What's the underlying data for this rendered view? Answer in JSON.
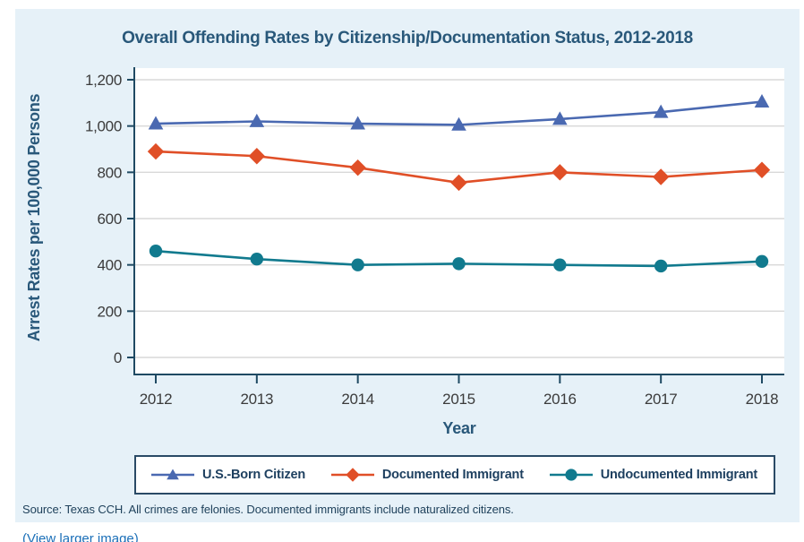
{
  "chart": {
    "title": "Overall Offending Rates by Citizenship/Documentation Status, 2012-2018",
    "source_note": "Source: Texas CCH. All crimes are felonies. Documented immigrants include naturalized citizens.",
    "colors": {
      "panel_bg": "#E6F1F8",
      "title_text": "#29587A",
      "axis_line": "#1F4A63",
      "tick_text": "#3B3B3B",
      "gridline": "#D8D8D8",
      "legend_border": "#2A4A66",
      "link": "#1B6FB8"
    }
  },
  "page": {
    "view_larger_link": "(View larger image)"
  },
  "chart_data": {
    "type": "line",
    "title": "Overall Offending Rates by Citizenship/Documentation Status, 2012-2018",
    "xlabel": "Year",
    "ylabel": "Arrest Rates per 100,000 Persons",
    "x": [
      "2012",
      "2013",
      "2014",
      "2015",
      "2016",
      "2017",
      "2018"
    ],
    "ylim": [
      0,
      1200
    ],
    "yticks": [
      0,
      200,
      400,
      600,
      800,
      1000,
      1200
    ],
    "ytick_labels": [
      "0",
      "200",
      "400",
      "600",
      "800",
      "1,000",
      "1,200"
    ],
    "grid": true,
    "legend_position": "bottom",
    "series": [
      {
        "name": "U.S.-Born Citizen",
        "marker": "triangle",
        "color": "#4A69B1",
        "values": [
          1010,
          1020,
          1010,
          1005,
          1030,
          1060,
          1105
        ]
      },
      {
        "name": "Documented Immigrant",
        "marker": "diamond",
        "color": "#E04F27",
        "values": [
          890,
          870,
          820,
          755,
          800,
          780,
          810
        ]
      },
      {
        "name": "Undocumented Immigrant",
        "marker": "circle",
        "color": "#117A8E",
        "values": [
          460,
          425,
          400,
          405,
          400,
          395,
          415
        ]
      }
    ]
  }
}
